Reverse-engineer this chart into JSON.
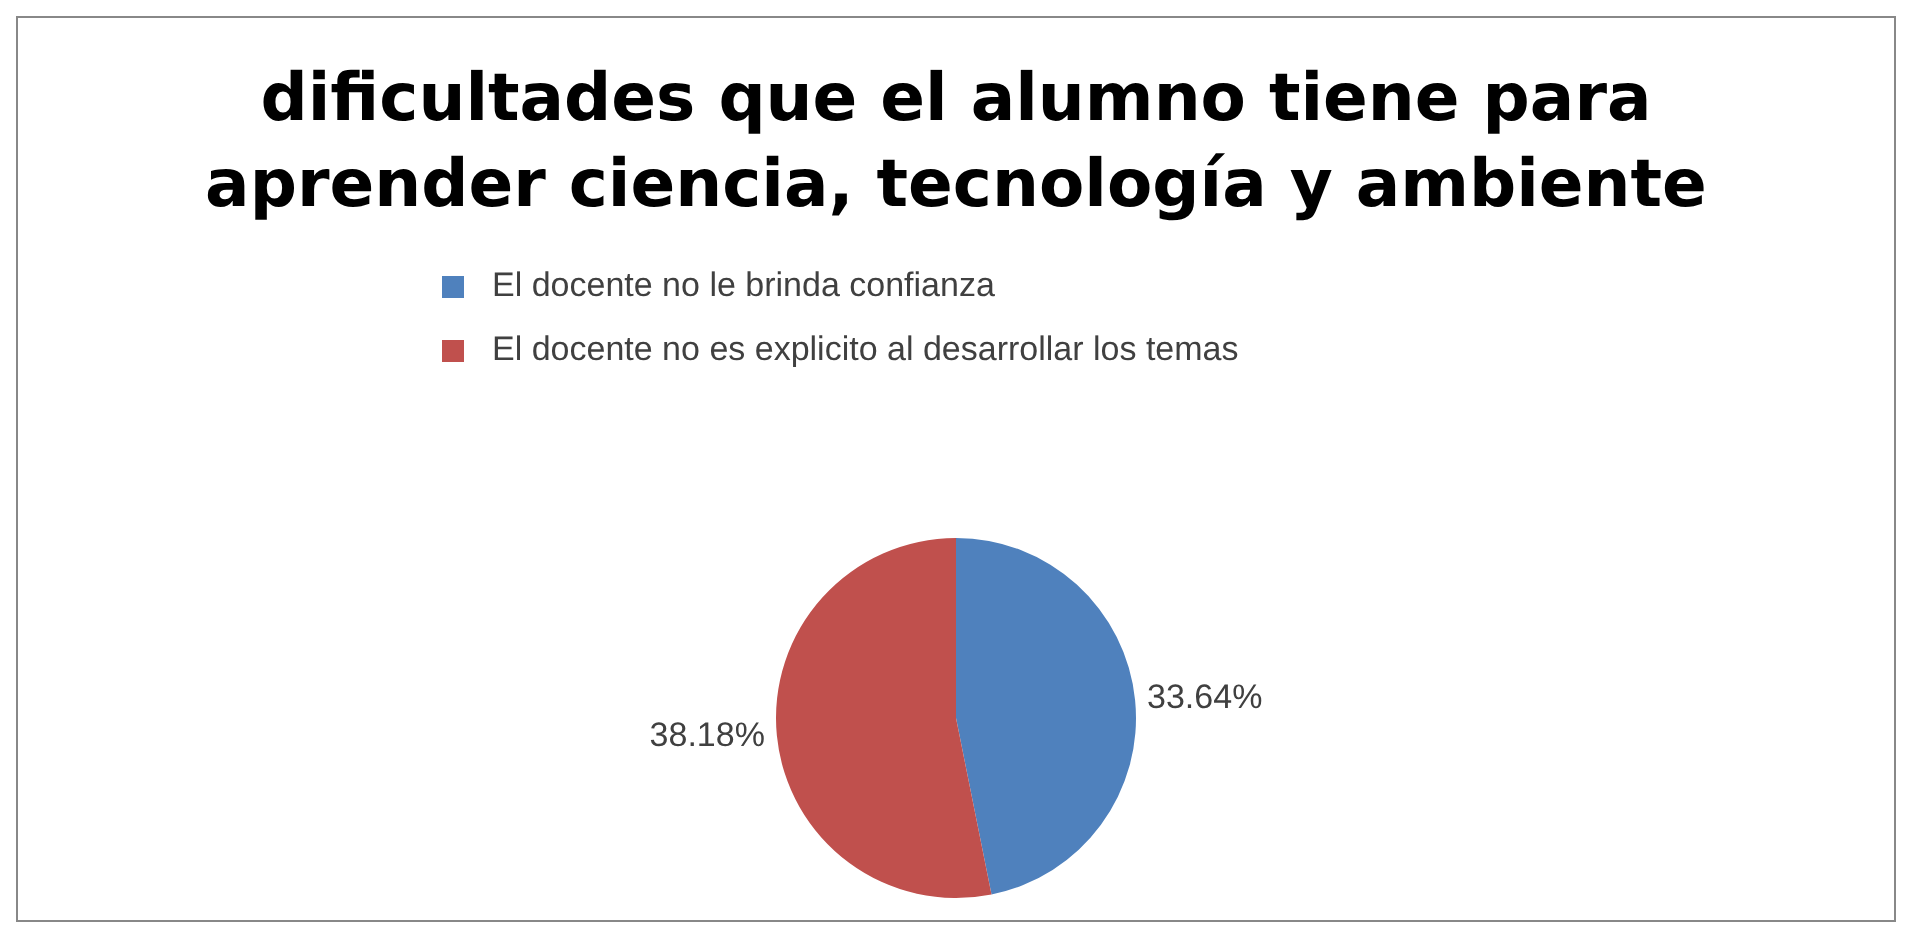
{
  "chart_data": {
    "type": "pie",
    "title": "dificultades que el alumno tiene para aprender ciencia, tecnología y ambiente",
    "categories": [
      "El docente no le brinda confianza",
      "El docente no es explicito al desarrollar los temas"
    ],
    "values": [
      33.64,
      38.18
    ],
    "colors": [
      "#4f81bd",
      "#c0504d"
    ],
    "value_labels": [
      "33.64%",
      "38.18%"
    ],
    "legend": "top"
  }
}
